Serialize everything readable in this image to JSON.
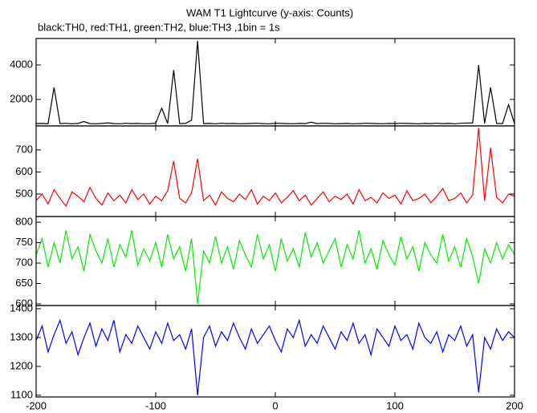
{
  "chart_data": {
    "type": "line",
    "title": "WAM T1 Lightcurve (y-axis: Counts)",
    "subtitle": "black:TH0, red:TH1, green:TH2, blue:TH3 ,1bin = 1s",
    "xlim": [
      -200,
      200
    ],
    "xticks": [
      -200,
      -100,
      0,
      100,
      200
    ],
    "x": [
      -200,
      -195,
      -190,
      -185,
      -180,
      -175,
      -170,
      -165,
      -160,
      -155,
      -150,
      -145,
      -140,
      -135,
      -130,
      -125,
      -120,
      -115,
      -110,
      -105,
      -100,
      -95,
      -90,
      -85,
      -80,
      -75,
      -70,
      -65,
      -60,
      -55,
      -50,
      -45,
      -40,
      -35,
      -30,
      -25,
      -20,
      -15,
      -10,
      -5,
      0,
      5,
      10,
      15,
      20,
      25,
      30,
      35,
      40,
      45,
      50,
      55,
      60,
      65,
      70,
      75,
      80,
      85,
      90,
      95,
      100,
      105,
      110,
      115,
      120,
      125,
      130,
      135,
      140,
      145,
      150,
      155,
      160,
      165,
      170,
      175,
      180,
      185,
      190,
      195,
      200
    ],
    "series": [
      {
        "color": "#000000",
        "ylim": [
          465,
          5535
        ],
        "yticks": [
          2000,
          4000
        ],
        "values": [
          600,
          610,
          590,
          2700,
          600,
          620,
          590,
          610,
          720,
          600,
          590,
          610,
          640,
          600,
          590,
          620,
          600,
          610,
          590,
          600,
          620,
          1500,
          600,
          3700,
          600,
          610,
          800,
          5400,
          600,
          610,
          590,
          620,
          600,
          610,
          590,
          600,
          610,
          620,
          600,
          590,
          620,
          610,
          600,
          590,
          610,
          600,
          680,
          600,
          620,
          610,
          590,
          600,
          610,
          590,
          600,
          620,
          610,
          600,
          590,
          610,
          600,
          620,
          610,
          600,
          590,
          610,
          600,
          620,
          600,
          610,
          590,
          620,
          630,
          640,
          4000,
          600,
          2700,
          610,
          600,
          1700,
          600
        ]
      },
      {
        "color": "#ff0000",
        "ylim": [
          398,
          809
        ],
        "yticks": [
          500,
          600,
          700
        ],
        "values": [
          470,
          500,
          455,
          520,
          480,
          445,
          510,
          490,
          465,
          530,
          480,
          450,
          505,
          470,
          495,
          460,
          520,
          475,
          500,
          455,
          490,
          470,
          515,
          650,
          480,
          460,
          505,
          660,
          470,
          495,
          450,
          510,
          480,
          465,
          500,
          475,
          520,
          455,
          490,
          470,
          505,
          460,
          485,
          515,
          470,
          495,
          450,
          480,
          510,
          465,
          490,
          475,
          500,
          455,
          520,
          470,
          485,
          460,
          505,
          480,
          495,
          455,
          515,
          470,
          480,
          500,
          460,
          490,
          525,
          470,
          480,
          505,
          460,
          495,
          800,
          470,
          710,
          485,
          460,
          500,
          490
        ]
      },
      {
        "color": "#00ee00",
        "ylim": [
          596,
          814
        ],
        "yticks": [
          600,
          650,
          700,
          750,
          800
        ],
        "values": [
          720,
          760,
          690,
          750,
          700,
          780,
          710,
          740,
          680,
          770,
          730,
          700,
          760,
          690,
          745,
          715,
          780,
          695,
          735,
          705,
          750,
          690,
          770,
          710,
          740,
          680,
          760,
          600,
          730,
          700,
          765,
          700,
          740,
          685,
          755,
          720,
          690,
          770,
          710,
          745,
          680,
          760,
          705,
          735,
          690,
          775,
          715,
          750,
          700,
          730,
          760,
          690,
          745,
          710,
          780,
          700,
          735,
          685,
          755,
          720,
          695,
          765,
          710,
          740,
          680,
          750,
          720,
          700,
          770,
          705,
          740,
          690,
          760,
          715,
          650,
          735,
          700,
          750,
          710,
          745,
          720
        ]
      },
      {
        "color": "#0000ff",
        "ylim": [
          1094,
          1411
        ],
        "yticks": [
          1100,
          1200,
          1300,
          1400
        ],
        "values": [
          1290,
          1340,
          1250,
          1310,
          1360,
          1280,
          1320,
          1240,
          1300,
          1350,
          1270,
          1330,
          1290,
          1360,
          1250,
          1310,
          1280,
          1340,
          1300,
          1260,
          1320,
          1280,
          1350,
          1290,
          1310,
          1260,
          1330,
          1100,
          1300,
          1340,
          1270,
          1320,
          1290,
          1350,
          1300,
          1260,
          1330,
          1280,
          1310,
          1340,
          1290,
          1250,
          1330,
          1300,
          1360,
          1270,
          1310,
          1280,
          1340,
          1300,
          1260,
          1320,
          1290,
          1350,
          1280,
          1310,
          1240,
          1330,
          1300,
          1270,
          1340,
          1290,
          1310,
          1260,
          1350,
          1300,
          1280,
          1320,
          1250,
          1310,
          1290,
          1340,
          1270,
          1310,
          1110,
          1300,
          1260,
          1330,
          1290,
          1320,
          1300
        ]
      }
    ]
  }
}
